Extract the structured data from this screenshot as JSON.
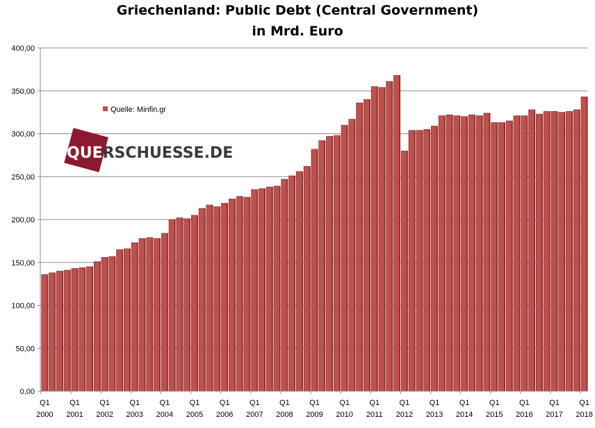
{
  "chart_data": {
    "type": "bar",
    "title": "Griechenland: Public Debt (Central Government)",
    "subtitle": "in Mrd. Euro",
    "legend": [
      {
        "name": "Quelle: Minfin.gr",
        "color": "#c0504d"
      }
    ],
    "legend_position": "upper-left",
    "watermark": "QUERSCHUESSE.DE",
    "ylim": [
      0,
      400
    ],
    "yticks": [
      "0,00",
      "50,00",
      "100,00",
      "150,00",
      "200,00",
      "250,00",
      "300,00",
      "350,00",
      "400,00"
    ],
    "ytick_values": [
      0,
      50,
      100,
      150,
      200,
      250,
      300,
      350,
      400
    ],
    "grid": true,
    "x_labels": [
      {
        "quarter": "Q1",
        "year": "2000",
        "index": 0
      },
      {
        "quarter": "Q1",
        "year": "2001",
        "index": 4
      },
      {
        "quarter": "Q1",
        "year": "2002",
        "index": 8
      },
      {
        "quarter": "Q1",
        "year": "2003",
        "index": 12
      },
      {
        "quarter": "Q1",
        "year": "2004",
        "index": 16
      },
      {
        "quarter": "Q1",
        "year": "2005",
        "index": 20
      },
      {
        "quarter": "Q1",
        "year": "2006",
        "index": 24
      },
      {
        "quarter": "Q1",
        "year": "2007",
        "index": 28
      },
      {
        "quarter": "Q1",
        "year": "2008",
        "index": 32
      },
      {
        "quarter": "Q1",
        "year": "2009",
        "index": 36
      },
      {
        "quarter": "Q1",
        "year": "2010",
        "index": 40
      },
      {
        "quarter": "Q1",
        "year": "2011",
        "index": 44
      },
      {
        "quarter": "Q1",
        "year": "2012",
        "index": 48
      },
      {
        "quarter": "Q1",
        "year": "2013",
        "index": 52
      },
      {
        "quarter": "Q1",
        "year": "2014",
        "index": 56
      },
      {
        "quarter": "Q1",
        "year": "2015",
        "index": 60
      },
      {
        "quarter": "Q1",
        "year": "2016",
        "index": 64
      },
      {
        "quarter": "Q1",
        "year": "2017",
        "index": 68
      },
      {
        "quarter": "Q1",
        "year": "2018",
        "index": 72
      }
    ],
    "series": [
      {
        "name": "Quelle: Minfin.gr",
        "color": "#c0504d",
        "values": [
          136,
          138,
          140,
          141,
          143,
          144,
          145,
          151,
          156,
          157,
          165,
          166,
          173,
          178,
          179,
          178,
          184,
          200,
          202,
          201,
          205,
          213,
          217,
          215,
          219,
          224,
          227,
          226,
          235,
          236,
          238,
          239,
          247,
          251,
          256,
          262,
          282,
          292,
          297,
          298,
          310,
          317,
          336,
          340,
          355,
          354,
          361,
          368,
          280,
          304,
          304,
          305,
          309,
          321,
          322,
          321,
          320,
          322,
          321,
          324,
          313,
          313,
          315,
          321,
          321,
          328,
          323,
          326,
          326,
          325,
          326,
          328,
          343
        ]
      }
    ]
  }
}
